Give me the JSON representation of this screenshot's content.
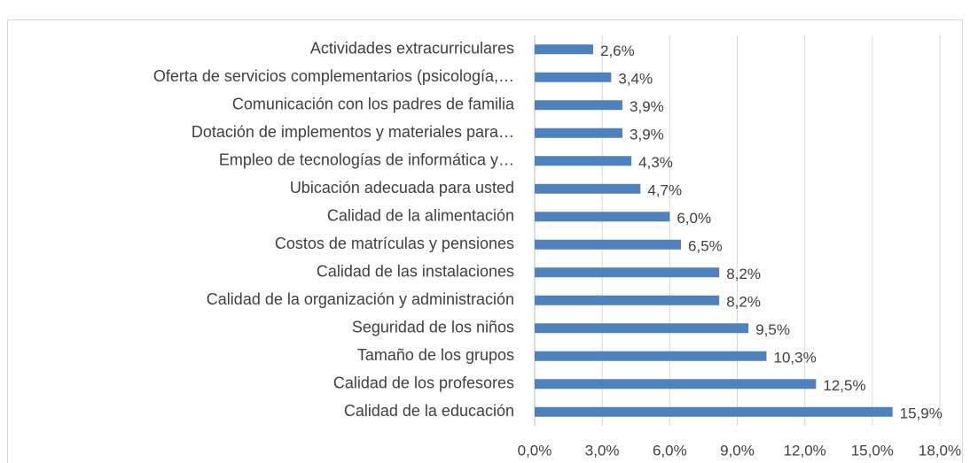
{
  "chart_data": {
    "type": "barh",
    "categories": [
      "Actividades extracurriculares",
      "Oferta de servicios complementarios (psicología,…",
      "Comunicación con los padres de familia",
      "Dotación de implementos y materiales para…",
      "Empleo de tecnologías de informática y…",
      "Ubicación adecuada para usted",
      "Calidad de la alimentación",
      "Costos de matrículas y pensiones",
      "Calidad de las instalaciones",
      "Calidad de la organización y administración",
      "Seguridad de los niños",
      "Tamaño de los grupos",
      "Calidad de los profesores",
      "Calidad de la educación"
    ],
    "values": [
      2.6,
      3.4,
      3.9,
      3.9,
      4.3,
      4.7,
      6.0,
      6.5,
      8.2,
      8.2,
      9.5,
      10.3,
      12.5,
      15.9
    ],
    "value_labels": [
      "2,6%",
      "3,4%",
      "3,9%",
      "3,9%",
      "4,3%",
      "4,7%",
      "6,0%",
      "6,5%",
      "8,2%",
      "8,2%",
      "9,5%",
      "10,3%",
      "12,5%",
      "15,9%"
    ],
    "color": "#4f81bd",
    "xlim": [
      0,
      18
    ],
    "xticks": [
      {
        "value": 0,
        "label": "0,0%"
      },
      {
        "value": 3,
        "label": "3,0%"
      },
      {
        "value": 6,
        "label": "6,0%"
      },
      {
        "value": 9,
        "label": "9,0%"
      },
      {
        "value": 12,
        "label": "12,0%"
      },
      {
        "value": 15,
        "label": "15,0%"
      },
      {
        "value": 18,
        "label": "18,0%"
      }
    ],
    "grid": true
  }
}
